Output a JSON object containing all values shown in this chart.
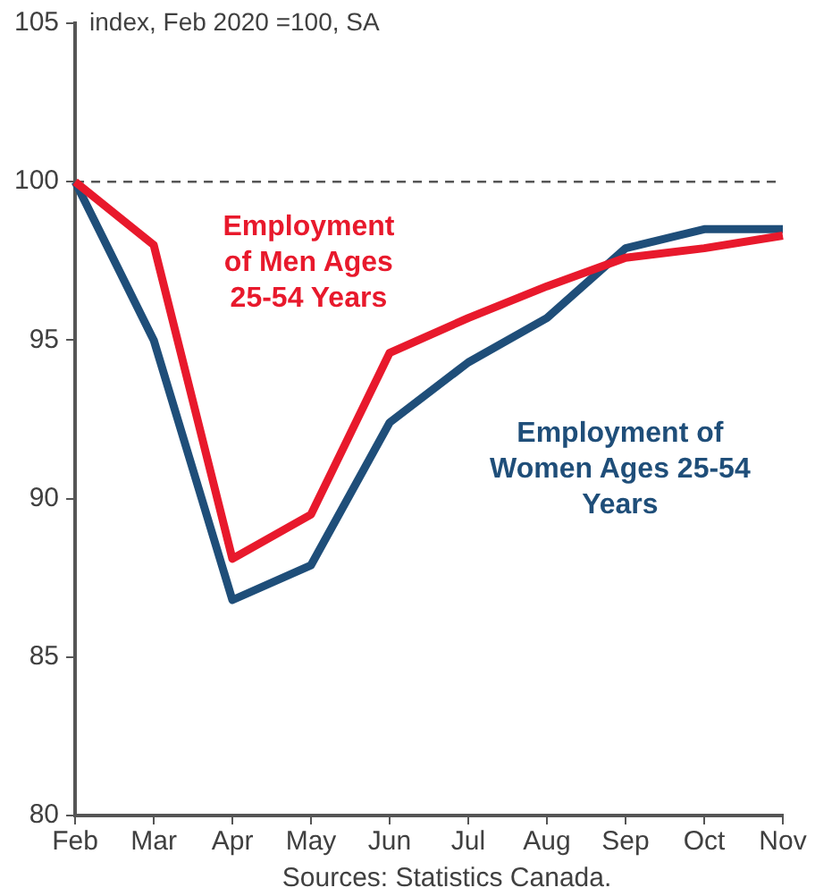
{
  "chart_data": {
    "type": "line",
    "subtitle": "index, Feb 2020 =100, SA",
    "categories": [
      "Feb",
      "Mar",
      "Apr",
      "May",
      "Jun",
      "Jul",
      "Aug",
      "Sep",
      "Oct",
      "Nov"
    ],
    "series": [
      {
        "name": "Employment of Men Ages 25-54 Years",
        "color": "#e8192c",
        "values": [
          100,
          98.0,
          88.1,
          89.5,
          94.6,
          95.7,
          96.7,
          97.6,
          97.9,
          98.3
        ]
      },
      {
        "name": "Employment of Women Ages 25-54 Years",
        "color": "#1f4e79",
        "values": [
          100,
          95.0,
          86.8,
          87.9,
          92.4,
          94.3,
          95.7,
          97.9,
          98.5,
          98.5
        ]
      }
    ],
    "ylim": [
      80,
      105
    ],
    "yticks": [
      80,
      85,
      90,
      95,
      100,
      105
    ],
    "grid": false,
    "legend": false,
    "ref_lines": [
      {
        "axis": "y",
        "value": 100,
        "color": "#555555",
        "line_style": "dashed"
      }
    ],
    "annotations": [
      "Sources: Statistics Canada."
    ]
  }
}
